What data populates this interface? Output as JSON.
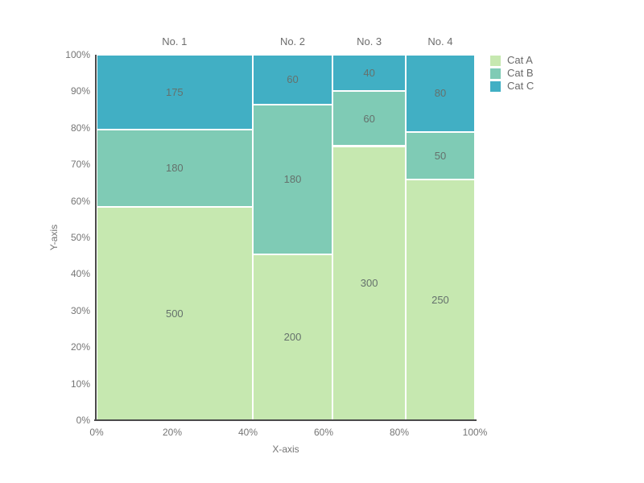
{
  "chart_data": {
    "type": "mosaic",
    "title": "",
    "xlabel": "X-axis",
    "ylabel": "Y-axis",
    "columns": [
      "No. 1",
      "No. 2",
      "No. 3",
      "No. 4"
    ],
    "series": [
      {
        "name": "Cat A",
        "color": "#c6e8b0",
        "values": [
          500,
          200,
          300,
          250
        ]
      },
      {
        "name": "Cat B",
        "color": "#7fcbb5",
        "values": [
          180,
          180,
          60,
          50
        ]
      },
      {
        "name": "Cat C",
        "color": "#41afc4",
        "values": [
          175,
          60,
          40,
          80
        ]
      }
    ],
    "x_ticks": [
      "0%",
      "20%",
      "40%",
      "60%",
      "80%",
      "100%"
    ],
    "y_ticks": [
      "0%",
      "10%",
      "20%",
      "30%",
      "40%",
      "50%",
      "60%",
      "70%",
      "80%",
      "90%",
      "100%"
    ],
    "axis_range": {
      "x_percent": [
        0,
        100
      ],
      "y_percent": [
        0,
        100
      ]
    },
    "grid": false,
    "legend": {
      "position": "top-right",
      "items": [
        "Cat A",
        "Cat B",
        "Cat C"
      ]
    }
  },
  "colors": {
    "axis_line": "#4a4a4a",
    "tick_text": "#757575",
    "segment_label_text": "#65716c",
    "column_header_text": "#6d6d6d",
    "background": "#ffffff"
  }
}
